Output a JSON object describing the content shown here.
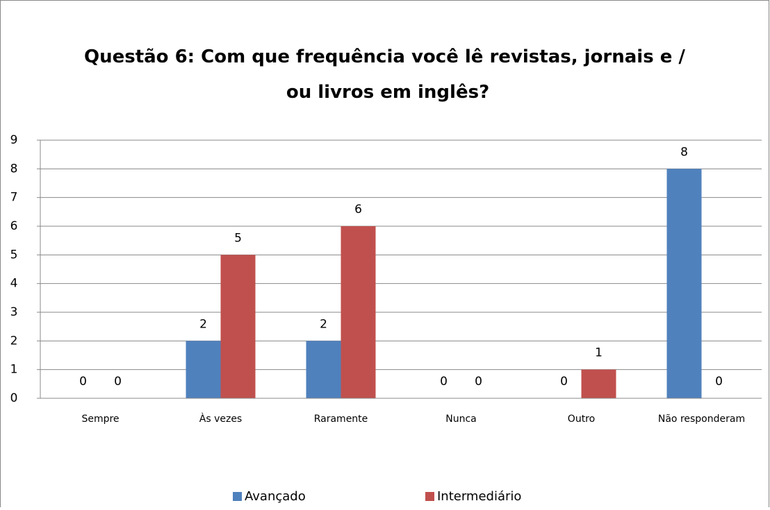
{
  "chart_data": {
    "type": "bar",
    "title": "Questão 6: Com que frequência você lê revistas, jornais e / ou livros em inglês?",
    "categories": [
      "Sempre",
      "Às vezes",
      "Raramente",
      "Nunca",
      "Outro",
      "Não responderam"
    ],
    "series": [
      {
        "name": "Avançado",
        "color": "#4f81bd",
        "values": [
          0,
          2,
          2,
          0,
          0,
          8
        ]
      },
      {
        "name": "Intermediário",
        "color": "#c0504d",
        "values": [
          0,
          5,
          6,
          0,
          1,
          0
        ]
      }
    ],
    "ylim": [
      0,
      9
    ],
    "yticks": [
      0,
      1,
      2,
      3,
      4,
      5,
      6,
      7,
      8,
      9
    ],
    "grid": true,
    "legend": "bottom"
  }
}
